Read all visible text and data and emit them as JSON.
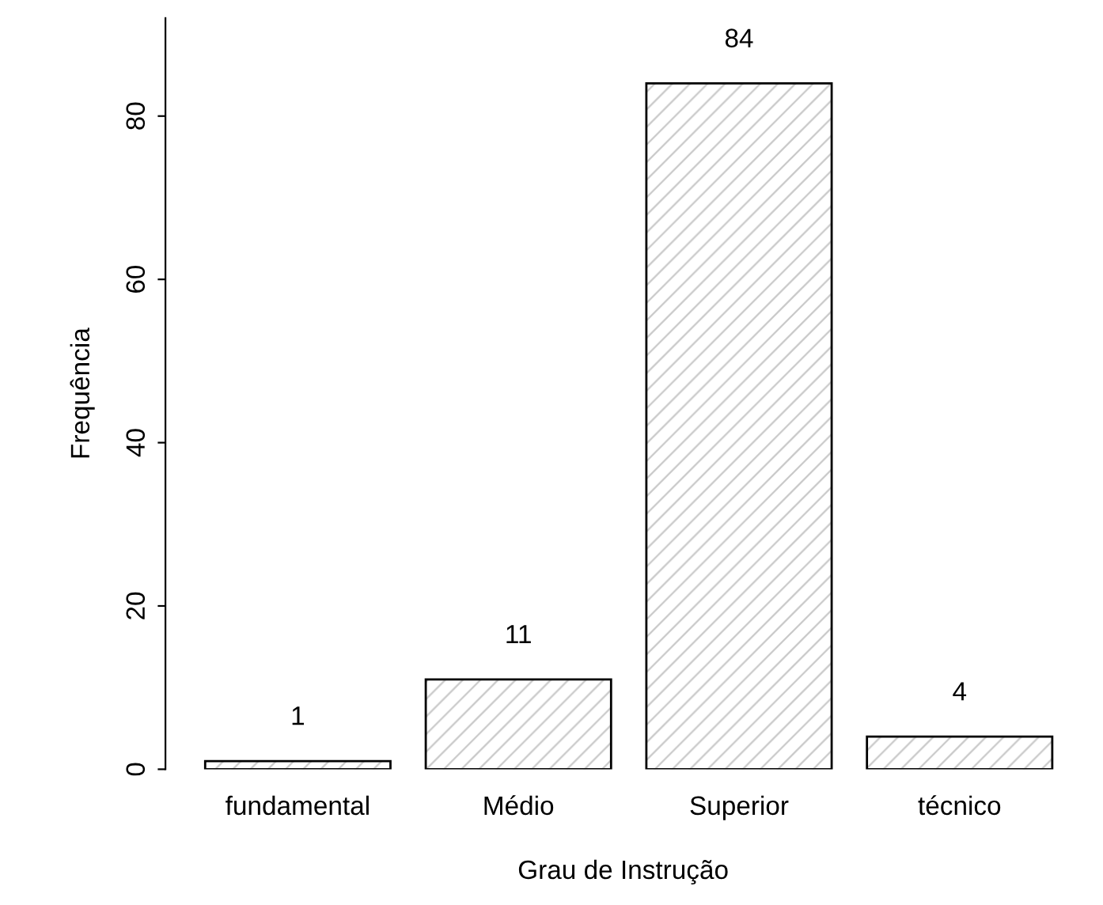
{
  "chart_data": {
    "type": "bar",
    "xlabel": "Grau de Instrução",
    "ylabel": "Frequência",
    "categories": [
      "fundamental",
      "Médio",
      "Superior",
      "técnico"
    ],
    "values": [
      1,
      11,
      84,
      4
    ],
    "ylim": [
      0,
      92
    ],
    "yticks": [
      0,
      20,
      40,
      60,
      80
    ],
    "grid": false,
    "legend": false,
    "data_labels": true
  }
}
